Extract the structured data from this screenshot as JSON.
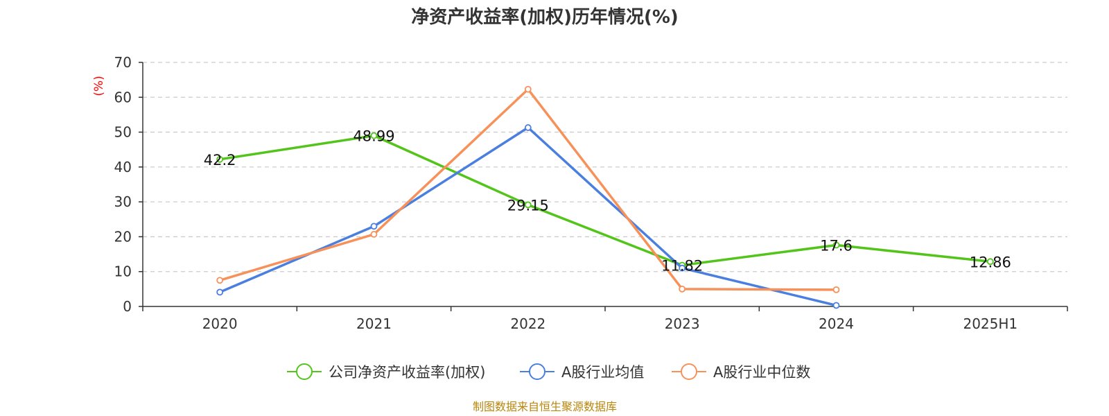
{
  "chart_data": {
    "type": "line",
    "title": "净资产收益率(加权)历年情况(%)",
    "ylabel": "(%)",
    "xlabel": "",
    "categories": [
      "2020",
      "2021",
      "2022",
      "2023",
      "2024",
      "2025H1"
    ],
    "ylim": [
      0,
      70
    ],
    "yticks": [
      0,
      10,
      20,
      30,
      40,
      50,
      60,
      70
    ],
    "grid": true,
    "legend_position": "bottom-center",
    "series": [
      {
        "name": "公司净资产收益率(加权)",
        "color": "#52c41a",
        "values": [
          42.2,
          48.99,
          29.15,
          11.82,
          17.6,
          12.86
        ],
        "labels": [
          "42.2",
          "48.99",
          "29.15",
          "11.82",
          "17.6",
          "12.86"
        ]
      },
      {
        "name": "A股行业均值",
        "color": "#4a7fe0",
        "values": [
          4.1,
          23.0,
          51.3,
          11.0,
          0.3,
          null
        ]
      },
      {
        "name": "A股行业中位数",
        "color": "#f7915a",
        "values": [
          7.5,
          20.7,
          62.3,
          5.0,
          4.8,
          null
        ]
      }
    ],
    "source": "制图数据来自恒生聚源数据库"
  }
}
